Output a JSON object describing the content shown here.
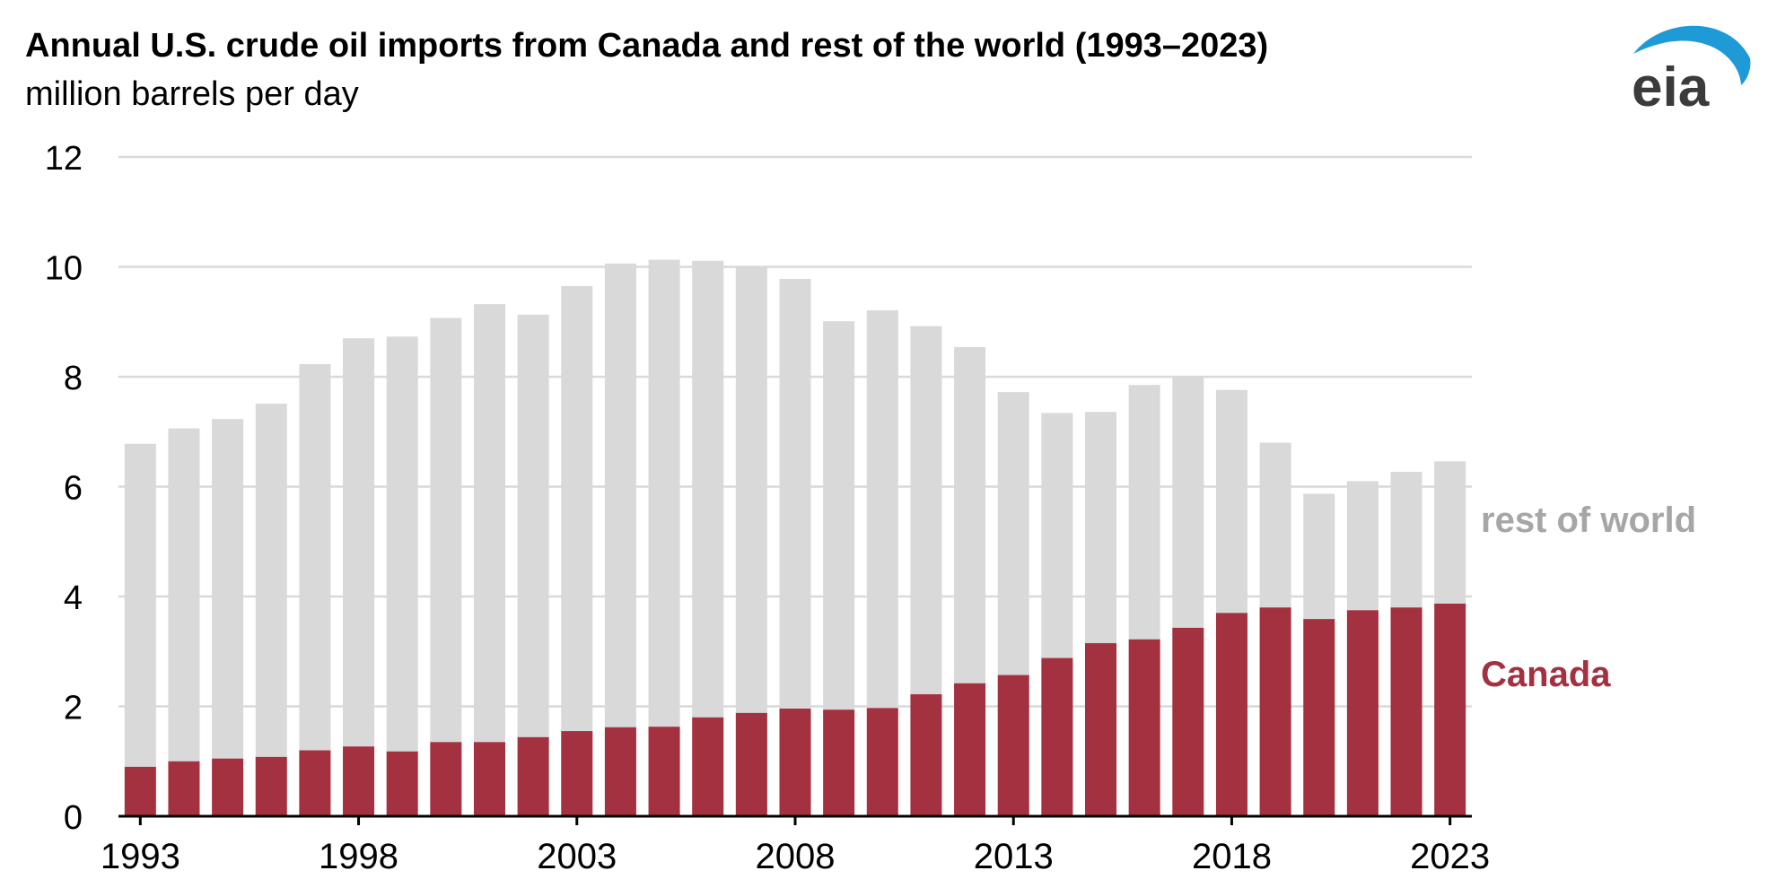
{
  "header": {
    "title": "Annual U.S. crude oil imports from Canada and rest of the world (1993–2023)",
    "subtitle": "million barrels per day"
  },
  "logo": {
    "text": "eia",
    "icon": "eia-logo-icon",
    "arc_color": "#1e9ad6",
    "text_color": "#3b3b3b"
  },
  "chart_data": {
    "type": "bar",
    "stacked": true,
    "title": "Annual U.S. crude oil imports from Canada and rest of the world (1993–2023)",
    "ylabel": "million barrels per day",
    "xlabel": "",
    "ylim": [
      0,
      12
    ],
    "yticks": [
      "0",
      "2",
      "4",
      "6",
      "8",
      "10",
      "12"
    ],
    "xtick_labels": [
      "1993",
      "1998",
      "2003",
      "2008",
      "2013",
      "2018",
      "2023"
    ],
    "grid": true,
    "legend_placement": "right",
    "categories": [
      "1993",
      "1994",
      "1995",
      "1996",
      "1997",
      "1998",
      "1999",
      "2000",
      "2001",
      "2002",
      "2003",
      "2004",
      "2005",
      "2006",
      "2007",
      "2008",
      "2009",
      "2010",
      "2011",
      "2012",
      "2013",
      "2014",
      "2015",
      "2016",
      "2017",
      "2018",
      "2019",
      "2020",
      "2021",
      "2022",
      "2023"
    ],
    "series": [
      {
        "name": "Canada",
        "label": "Canada",
        "color": "#a3313f",
        "values": [
          0.9,
          1.0,
          1.05,
          1.08,
          1.2,
          1.27,
          1.18,
          1.35,
          1.35,
          1.44,
          1.55,
          1.62,
          1.63,
          1.8,
          1.88,
          1.96,
          1.94,
          1.97,
          2.22,
          2.42,
          2.57,
          2.88,
          3.15,
          3.22,
          3.43,
          3.7,
          3.8,
          3.59,
          3.75,
          3.8,
          3.87
        ]
      },
      {
        "name": "rest of world",
        "label": "rest of world",
        "color": "#d9d9d9",
        "values": [
          5.88,
          6.06,
          6.18,
          6.43,
          7.03,
          7.43,
          7.55,
          7.72,
          7.97,
          7.69,
          8.1,
          8.44,
          8.5,
          8.31,
          8.13,
          7.82,
          7.07,
          7.24,
          6.7,
          6.12,
          5.15,
          4.46,
          4.21,
          4.63,
          4.57,
          4.06,
          3.0,
          2.28,
          2.35,
          2.47,
          2.59
        ]
      }
    ]
  }
}
